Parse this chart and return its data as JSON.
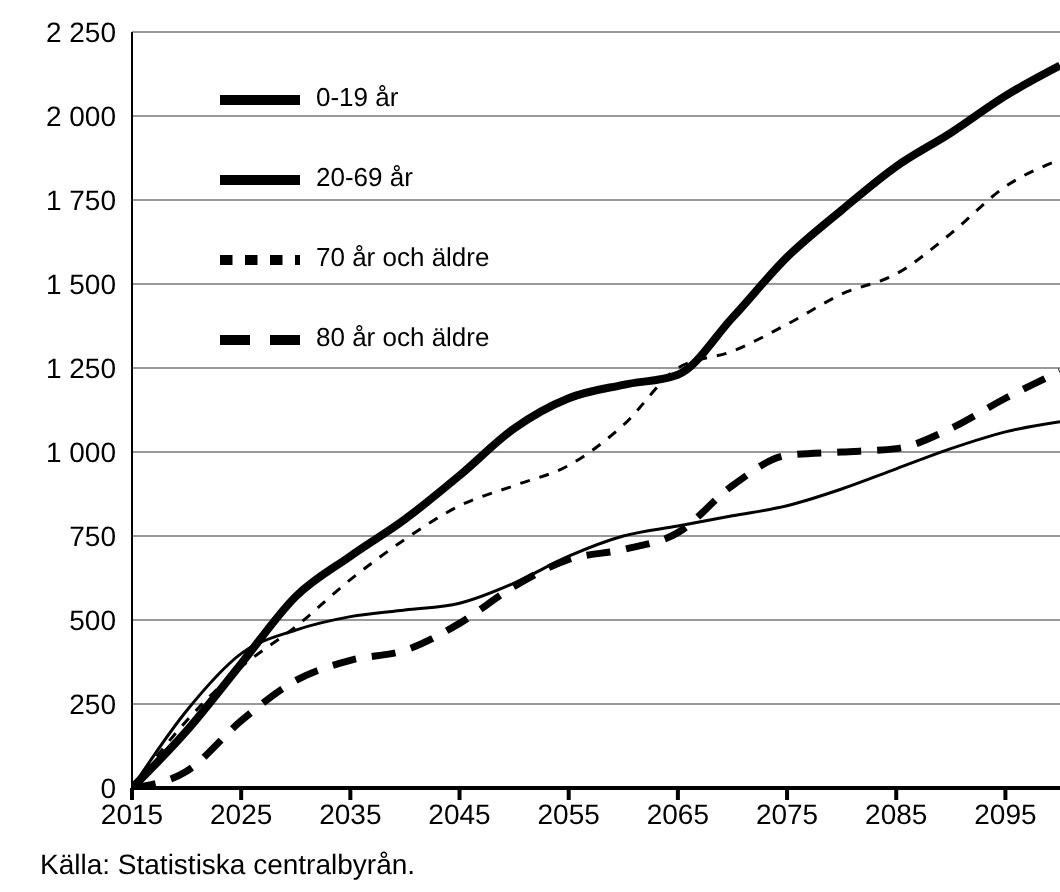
{
  "chart_data": {
    "type": "line",
    "x": [
      2015,
      2020,
      2025,
      2030,
      2035,
      2040,
      2045,
      2050,
      2055,
      2060,
      2065,
      2070,
      2075,
      2080,
      2085,
      2090,
      2095,
      2100
    ],
    "series": [
      {
        "name": "0-19 år",
        "color": "#000000",
        "line_style": "solid",
        "values": [
          0,
          230,
          400,
          470,
          510,
          530,
          550,
          610,
          690,
          750,
          780,
          810,
          840,
          890,
          950,
          1010,
          1060,
          1090
        ]
      },
      {
        "name": "20-69 år",
        "color": "#000000",
        "line_style": "solid",
        "values": [
          0,
          170,
          370,
          570,
          690,
          800,
          930,
          1070,
          1160,
          1200,
          1230,
          1400,
          1580,
          1720,
          1850,
          1950,
          2060,
          2150
        ]
      },
      {
        "name": "70 år och äldre",
        "color": "#000000",
        "line_style": "dashed",
        "values": [
          0,
          200,
          360,
          480,
          620,
          740,
          840,
          900,
          960,
          1080,
          1250,
          1300,
          1380,
          1470,
          1530,
          1650,
          1790,
          1870
        ]
      },
      {
        "name": "80 år och äldre",
        "color": "#000000",
        "line_style": "dashed",
        "values": [
          0,
          50,
          200,
          320,
          380,
          410,
          490,
          600,
          680,
          710,
          760,
          900,
          990,
          1000,
          1010,
          1070,
          1160,
          1240
        ]
      }
    ],
    "xlim": [
      2015,
      2100
    ],
    "xticks": [
      2015,
      2025,
      2035,
      2045,
      2055,
      2065,
      2075,
      2085,
      2095
    ],
    "ylim": [
      0,
      2250
    ],
    "yticks": [
      0,
      250,
      500,
      750,
      {
        "value": 1000,
        "label": "1 000"
      },
      {
        "value": 1250,
        "label": "1 250"
      },
      {
        "value": 1500,
        "label": "1 500"
      },
      {
        "value": 1750,
        "label": "1 750"
      },
      {
        "value": 2000,
        "label": "2 000"
      },
      {
        "value": 2250,
        "label": "2 250"
      }
    ],
    "grid": "y",
    "legend": "top left",
    "marker": "none",
    "annotations": [
      "Källa: Statistiska centralbyrån."
    ]
  }
}
